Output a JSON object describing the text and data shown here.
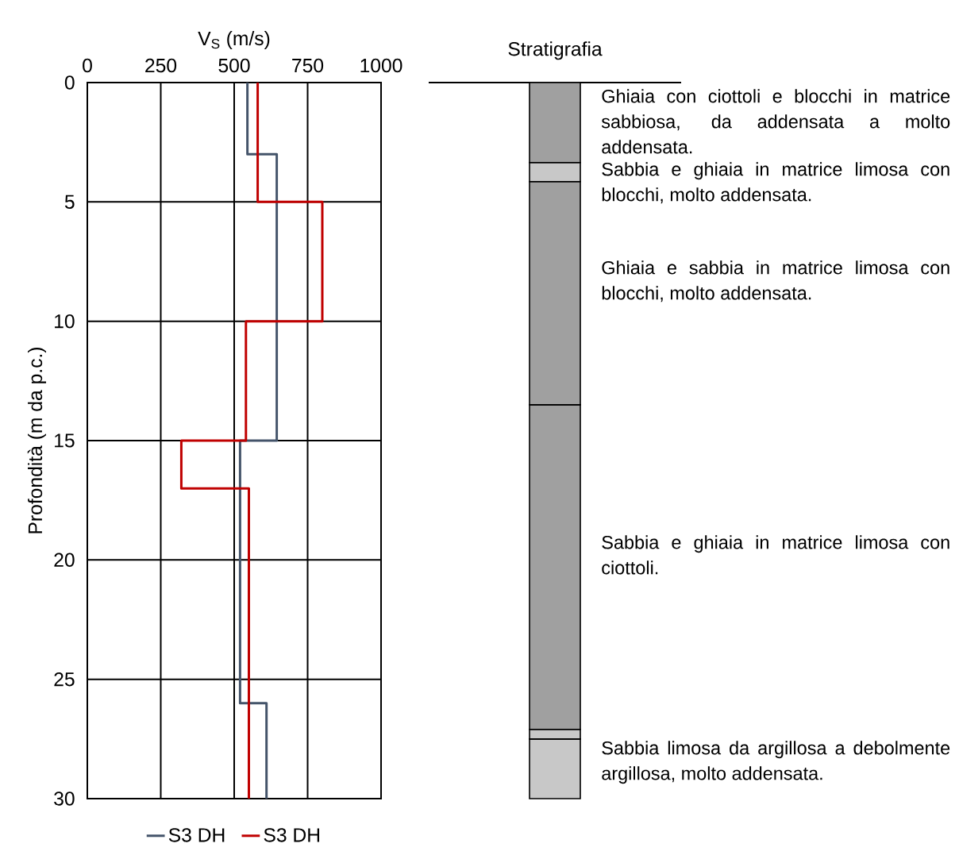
{
  "chart_data": [
    {
      "type": "line",
      "xlabel": "V$_{S}$ (m/s)",
      "ylabel": "Profondità (m da p.c.)",
      "xlim": [
        0,
        1000
      ],
      "xticks": [
        0,
        250,
        500,
        750,
        1000
      ],
      "ylim": [
        30,
        0
      ],
      "yticks": [
        0,
        5,
        10,
        15,
        20,
        25,
        30
      ],
      "grid": true,
      "legend": "bottom",
      "marker": "none",
      "line_style": "solid",
      "series": [
        {
          "name": "S3 DH",
          "color": "#44546a",
          "x": [
            545,
            545,
            645,
            645,
            520,
            520,
            610,
            610
          ],
          "values": [
            0,
            3,
            3,
            15,
            15,
            26,
            26,
            30
          ]
        },
        {
          "name": "S3 DH",
          "color": "#c00000",
          "x": [
            580,
            580,
            800,
            800,
            540,
            540,
            320,
            320,
            550,
            550
          ],
          "values": [
            0,
            5,
            5,
            10,
            10,
            15,
            15,
            17,
            17,
            30
          ]
        }
      ]
    },
    {
      "type": "bar",
      "title": "Stratigrafia",
      "stacked": true,
      "categories": [
        null
      ],
      "ylim": [
        30,
        0
      ],
      "series": [
        {
          "color": "#a0a0a0",
          "values": [
            3.35
          ]
        },
        {
          "color": "#c8c8c8",
          "values": [
            0.8
          ]
        },
        {
          "color": "#a0a0a0",
          "values": [
            9.35
          ]
        },
        {
          "color": "#a0a0a0",
          "values": [
            13.6
          ]
        },
        {
          "color": "#c8c8c8",
          "values": [
            0.4
          ]
        },
        {
          "color": "#c8c8c8",
          "values": [
            2.5
          ]
        }
      ],
      "ref_lines": [
        {
          "axis": "y",
          "value": 0
        }
      ],
      "annotations": [
        "Ghiaia con ciottoli e blocchi in matrice sabbiosa, da addensata a molto addensata.",
        "Sabbia e ghiaia in matrice limosa con blocchi, molto addensata.",
        "Ghiaia e sabbia in matrice limosa con blocchi, molto addensata.",
        "Sabbia e ghiaia in matrice limosa con ciottoli.",
        "Sabbia limosa da argillosa a debolmente argillosa, molto addensata."
      ]
    }
  ]
}
